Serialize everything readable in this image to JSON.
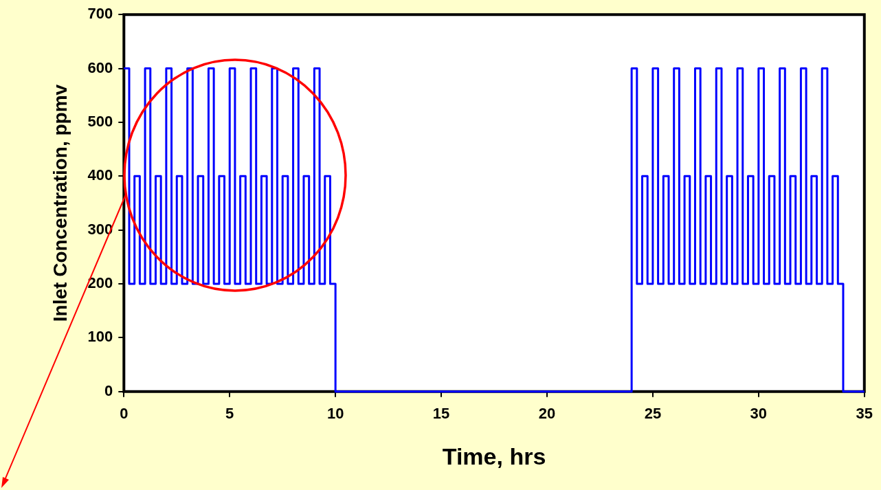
{
  "chart_data": {
    "type": "step",
    "xlabel": "Time, hrs",
    "ylabel": "Inlet Concentration, ppmv",
    "x": [
      0,
      0.25,
      0.5,
      0.75,
      1,
      1.25,
      1.5,
      1.75,
      2,
      2.25,
      2.5,
      2.75,
      3,
      3.25,
      3.5,
      3.75,
      4,
      4.25,
      4.5,
      4.75,
      5,
      5.25,
      5.5,
      5.75,
      6,
      6.25,
      6.5,
      6.75,
      7,
      7.25,
      7.5,
      7.75,
      8,
      8.25,
      8.5,
      8.75,
      9,
      9.25,
      9.5,
      9.75,
      10,
      24,
      24.25,
      24.5,
      24.75,
      25,
      25.25,
      25.5,
      25.75,
      26,
      26.25,
      26.5,
      26.75,
      27,
      27.25,
      27.5,
      27.75,
      28,
      28.25,
      28.5,
      28.75,
      29,
      29.25,
      29.5,
      29.75,
      30,
      30.25,
      30.5,
      30.75,
      31,
      31.25,
      31.5,
      31.75,
      32,
      32.25,
      32.5,
      32.75,
      33,
      33.25,
      33.5,
      33.75,
      34,
      35
    ],
    "series": [
      {
        "color": "#0000ff",
        "values": [
          600,
          200,
          400,
          200,
          600,
          200,
          400,
          200,
          600,
          200,
          400,
          200,
          600,
          200,
          400,
          200,
          600,
          200,
          400,
          200,
          600,
          200,
          400,
          200,
          600,
          200,
          400,
          200,
          600,
          200,
          400,
          200,
          600,
          200,
          400,
          200,
          600,
          200,
          400,
          200,
          0,
          600,
          200,
          400,
          200,
          600,
          200,
          400,
          200,
          600,
          200,
          400,
          200,
          600,
          200,
          400,
          200,
          600,
          200,
          400,
          200,
          600,
          200,
          400,
          200,
          600,
          200,
          400,
          200,
          600,
          200,
          400,
          200,
          600,
          200,
          400,
          200,
          600,
          200,
          400,
          200,
          0,
          0
        ]
      }
    ],
    "xlim": [
      0,
      35
    ],
    "xticks": [
      0,
      5,
      10,
      15,
      20,
      25,
      30,
      35
    ],
    "ylim": [
      0,
      700
    ],
    "yticks": [
      0,
      100,
      200,
      300,
      400,
      500,
      600,
      700
    ],
    "grid": false,
    "legend": false,
    "marker": "none",
    "line_style": "solid"
  }
}
